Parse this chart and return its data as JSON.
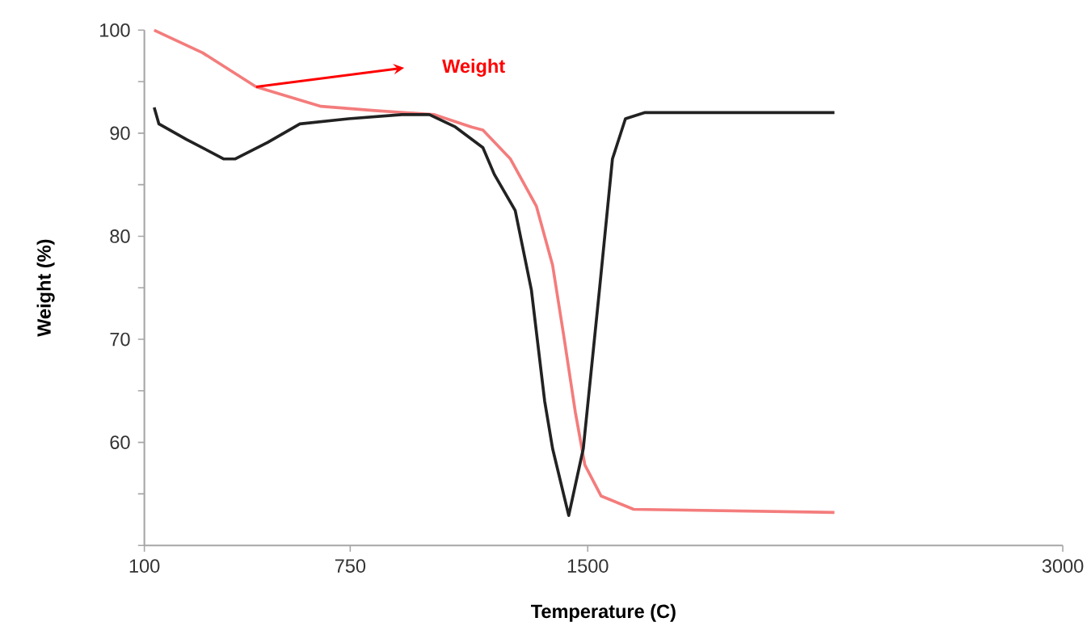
{
  "chart_data": {
    "type": "line",
    "xlabel": "Temperature (C)",
    "ylabel": "Weight (%)",
    "xlim": [
      100,
      3000
    ],
    "xticks": [
      100,
      750,
      1500,
      3000
    ],
    "ylim": [
      50,
      100
    ],
    "yticks": [
      {
        "value": 50,
        "label": null
      },
      {
        "value": 55,
        "label": null
      },
      60,
      {
        "value": 65,
        "label": null
      },
      70,
      {
        "value": 75,
        "label": null
      },
      80,
      {
        "value": 85,
        "label": null
      },
      90,
      {
        "value": 95,
        "label": null
      },
      100
    ],
    "line_style": "solid",
    "marker": "none",
    "series": [
      {
        "name": "Weight",
        "color": "#f47c7c",
        "x": [
          131,
          284,
          453,
          658,
          827,
          1016,
          1133,
          1169,
          1256,
          1338,
          1389,
          1425,
          1461,
          1491,
          1542,
          1645,
          2279
        ],
        "values": [
          100,
          97.8,
          94.5,
          92.6,
          92.2,
          91.8,
          90.6,
          90.3,
          87.5,
          82.9,
          77.2,
          70.2,
          62.9,
          57.8,
          54.8,
          53.5,
          53.2
        ]
      },
      {
        "color": "#222222",
        "x": [
          131,
          146,
          233,
          351,
          386,
          489,
          591,
          745,
          913,
          1000,
          1082,
          1169,
          1205,
          1271,
          1322,
          1364,
          1389,
          1440,
          1486,
          1537,
          1578,
          1619,
          1681,
          2279
        ],
        "values": [
          92.5,
          90.9,
          89.4,
          87.5,
          87.5,
          89.1,
          90.9,
          91.4,
          91.8,
          91.8,
          90.6,
          88.6,
          86.0,
          82.5,
          74.8,
          64.0,
          59.4,
          52.9,
          59.4,
          74.8,
          87.5,
          91.4,
          92.0,
          92.0
        ]
      }
    ]
  }
}
